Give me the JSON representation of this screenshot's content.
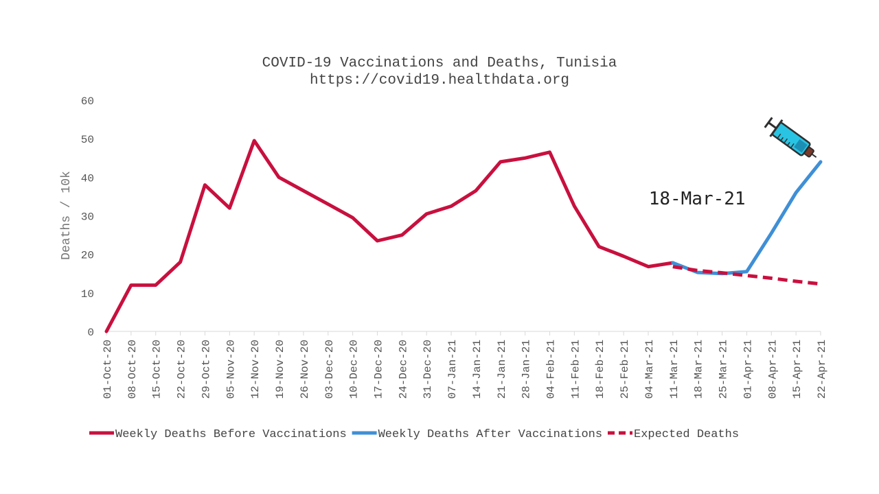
{
  "chart_data": {
    "type": "line",
    "title": "COVID-19 Vaccinations and Deaths, Tunisia",
    "subtitle": "https://covid19.healthdata.org",
    "xlabel": "",
    "ylabel": "Deaths / 10k",
    "ylim": [
      0,
      60
    ],
    "yticks": [
      "0",
      "10",
      "20",
      "30",
      "40",
      "50",
      "60"
    ],
    "categories": [
      "01-Oct-20",
      "08-Oct-20",
      "15-Oct-20",
      "22-Oct-20",
      "29-Oct-20",
      "05-Nov-20",
      "12-Nov-20",
      "19-Nov-20",
      "26-Nov-20",
      "03-Dec-20",
      "10-Dec-20",
      "17-Dec-20",
      "24-Dec-20",
      "31-Dec-20",
      "07-Jan-21",
      "14-Jan-21",
      "21-Jan-21",
      "28-Jan-21",
      "04-Feb-21",
      "11-Feb-21",
      "18-Feb-21",
      "25-Feb-21",
      "04-Mar-21",
      "11-Mar-21",
      "18-Mar-21",
      "25-Mar-21",
      "01-Apr-21",
      "08-Apr-21",
      "15-Apr-21",
      "22-Apr-21"
    ],
    "series": [
      {
        "name": "Weekly Deaths Before Vaccinations",
        "color": "#c8103e",
        "style": "solid",
        "values": [
          0,
          12,
          12,
          18,
          38,
          32,
          49.5,
          40,
          36.5,
          33,
          29.5,
          23.5,
          25,
          30.5,
          32.5,
          36.5,
          44,
          45,
          46.5,
          32.5,
          22,
          19.5,
          16.8,
          17.8,
          null,
          null,
          null,
          null,
          null,
          null
        ]
      },
      {
        "name": "Weekly Deaths After Vaccinations",
        "color": "#3f8fd6",
        "style": "solid",
        "values": [
          null,
          null,
          null,
          null,
          null,
          null,
          null,
          null,
          null,
          null,
          null,
          null,
          null,
          null,
          null,
          null,
          null,
          null,
          null,
          null,
          null,
          null,
          null,
          17.8,
          15.3,
          15,
          15.5,
          25.5,
          36,
          44
        ]
      },
      {
        "name": "Expected Deaths",
        "color": "#c8103e",
        "style": "dashed",
        "values": [
          null,
          null,
          null,
          null,
          null,
          null,
          null,
          null,
          null,
          null,
          null,
          null,
          null,
          null,
          null,
          null,
          null,
          null,
          null,
          null,
          null,
          null,
          null,
          16.8,
          15.8,
          15.2,
          14.5,
          13.8,
          13,
          12.3
        ]
      }
    ],
    "annotations": [
      {
        "text": "18-Mar-21",
        "x": "15-Apr-21",
        "y": 34.5
      }
    ],
    "legend_position": "bottom",
    "grid": false
  },
  "icons": {
    "syringe": "syringe-icon"
  }
}
